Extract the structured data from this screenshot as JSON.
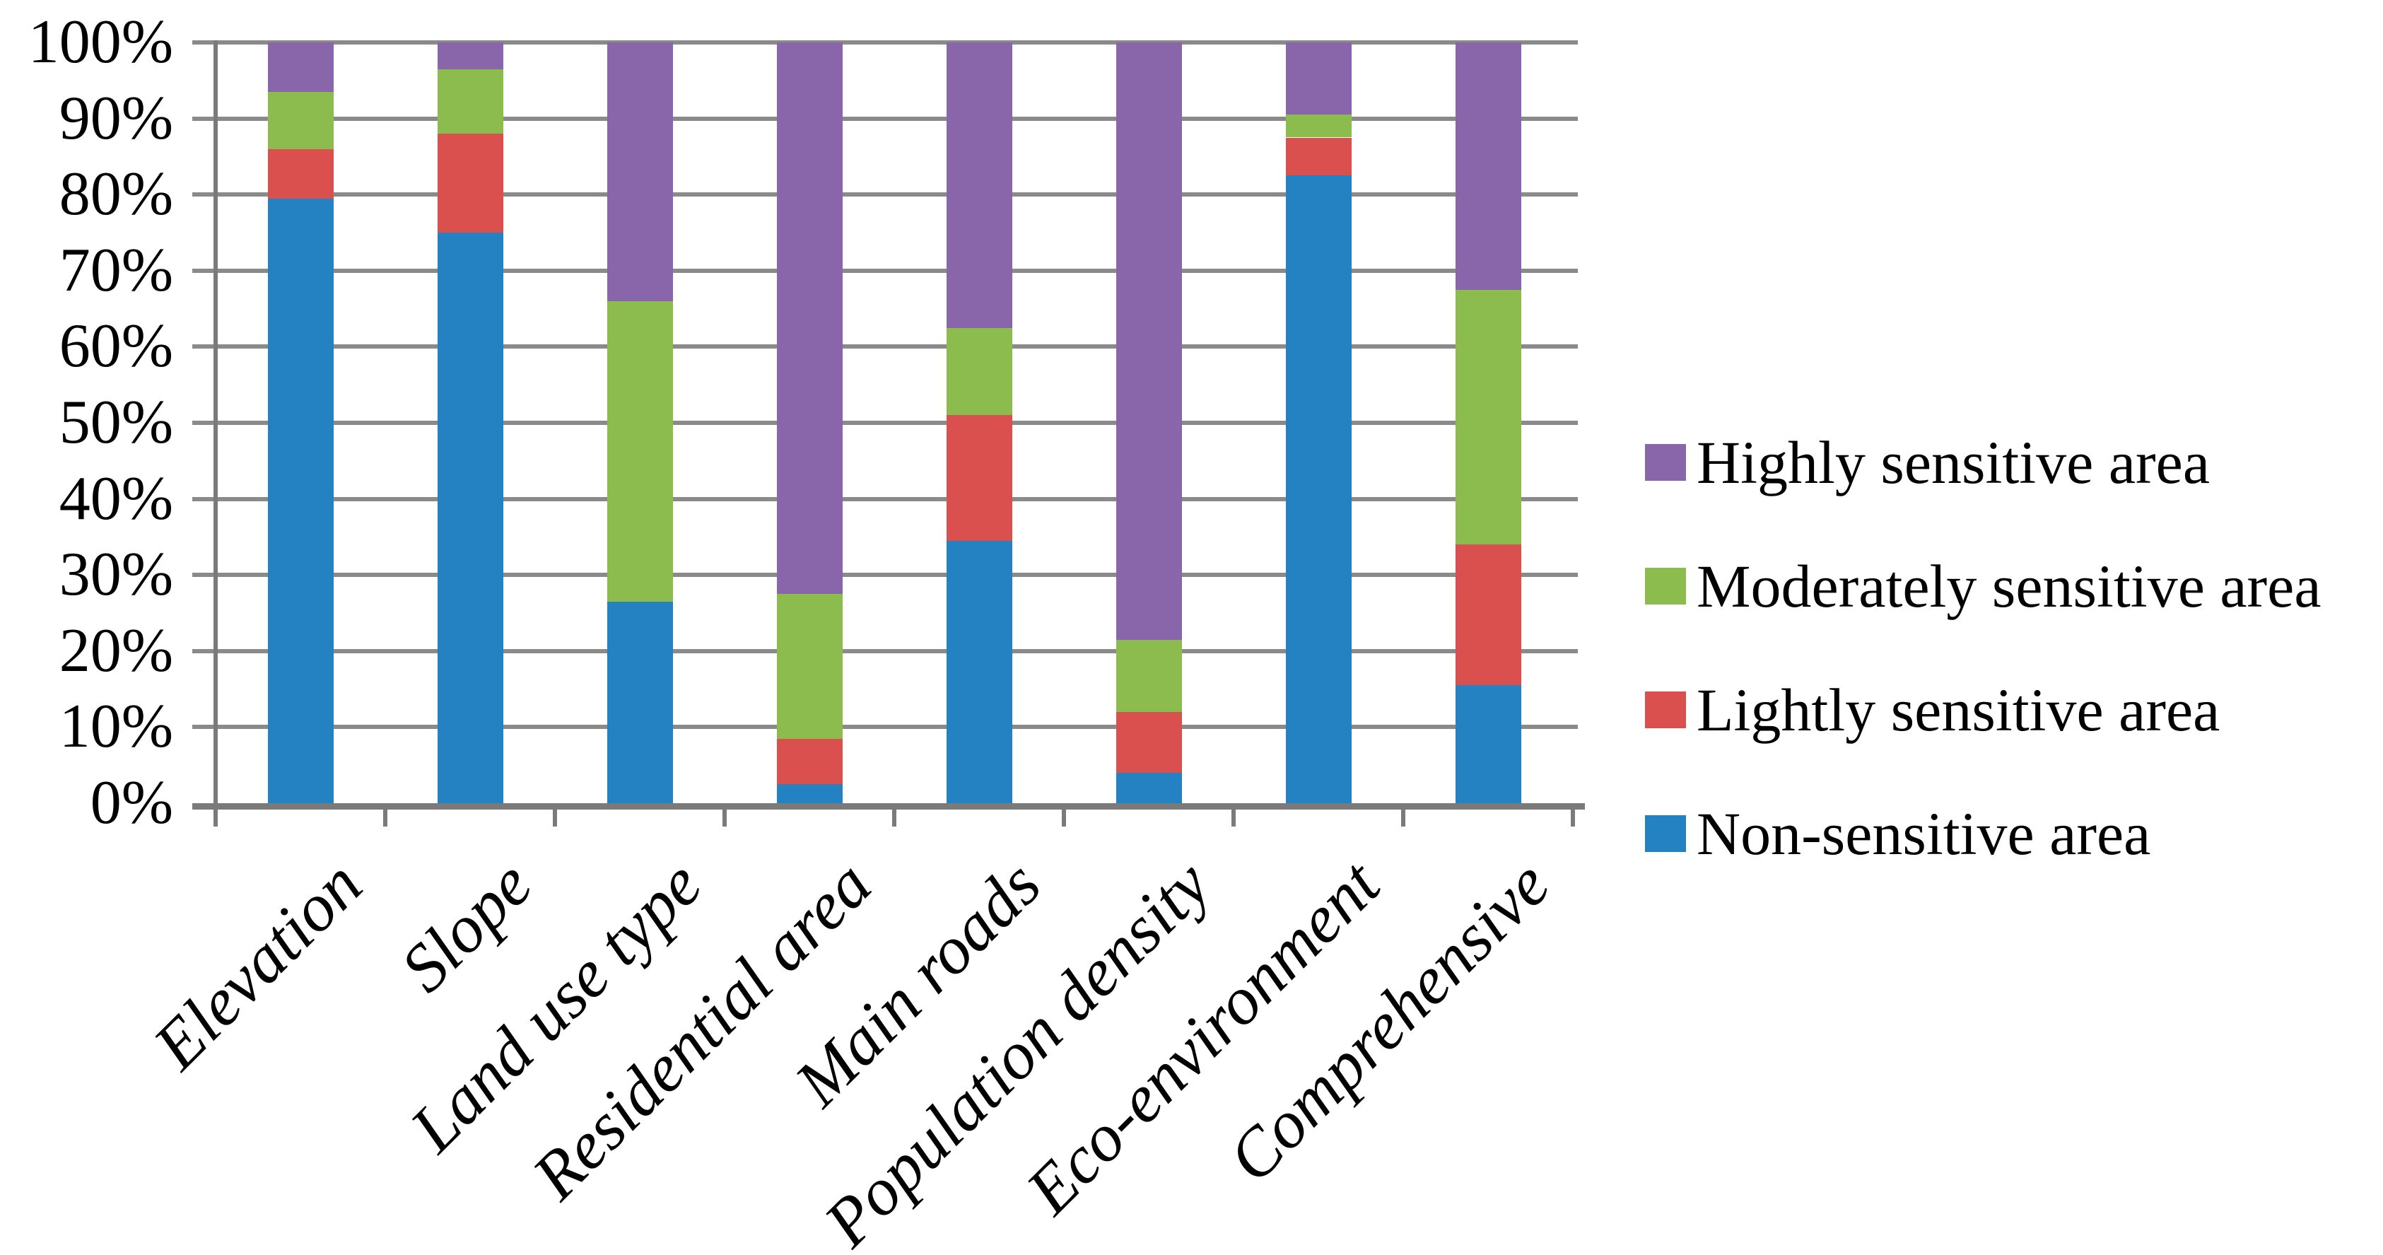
{
  "chart_data": {
    "type": "bar",
    "subtype": "stacked-100-percent",
    "title": "",
    "xlabel": "",
    "ylabel": "",
    "categories": [
      "Elevation",
      "Slope",
      "Land use type",
      "Residential area",
      "Main roads",
      "Population density",
      "Eco-environment",
      "Comprehensive"
    ],
    "series": [
      {
        "name": "Non-sensitive area",
        "color": "#2582C2",
        "values": [
          79.5,
          75.0,
          26.5,
          2.5,
          34.5,
          4.0,
          82.5,
          15.5
        ]
      },
      {
        "name": "Lightly sensitive area",
        "color": "#D9504E",
        "values": [
          6.5,
          13.0,
          0.0,
          6.0,
          16.5,
          8.0,
          5.0,
          18.5
        ]
      },
      {
        "name": "Moderately sensitive area",
        "color": "#8CBB4E",
        "values": [
          7.5,
          8.5,
          39.5,
          19.0,
          11.5,
          9.5,
          3.0,
          33.5
        ]
      },
      {
        "name": "Highly sensitive area",
        "color": "#8966A9",
        "values": [
          6.5,
          3.5,
          34.0,
          72.5,
          37.5,
          78.5,
          9.5,
          32.5
        ]
      }
    ],
    "y_axis": {
      "min": 0,
      "max": 100,
      "step": 10,
      "tick_labels": [
        "0%",
        "10%",
        "20%",
        "30%",
        "40%",
        "50%",
        "60%",
        "70%",
        "80%",
        "90%",
        "100%"
      ]
    },
    "legend": [
      "Highly sensitive area",
      "Moderately sensitive area",
      "Lightly sensitive area",
      "Non-sensitive area"
    ],
    "legend_position": "right",
    "grid": true
  },
  "colors": {
    "background": "#FFFFFF",
    "gridline": "#8A8A8A",
    "axis": "#7A7A7A",
    "text": "#000000",
    "highly_sensitive": "#8966A9",
    "moderately_sensitive": "#8CBB4E",
    "lightly_sensitive": "#D9504E",
    "non_sensitive": "#2582C2"
  }
}
